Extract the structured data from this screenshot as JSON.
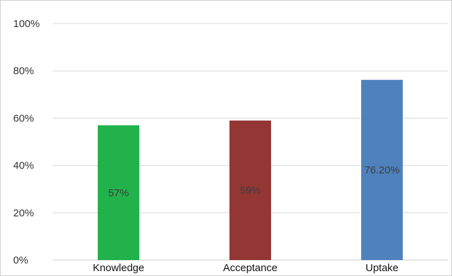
{
  "chart_data": {
    "type": "bar",
    "categories": [
      "Knowledge",
      "Acceptance",
      "Uptake"
    ],
    "values": [
      57,
      59,
      76.2
    ],
    "data_labels": [
      "57%",
      "59%",
      "76.20%"
    ],
    "colors": [
      "#21b24b",
      "#943634",
      "#4f81bd"
    ],
    "ylim": [
      0,
      100
    ],
    "y_ticks": [
      "0%",
      "20%",
      "40%",
      "60%",
      "80%",
      "100%"
    ],
    "y_tick_values": [
      0,
      20,
      40,
      60,
      80,
      100
    ],
    "grid": true,
    "gridline_color": "#d9d9d9",
    "legend": false
  }
}
